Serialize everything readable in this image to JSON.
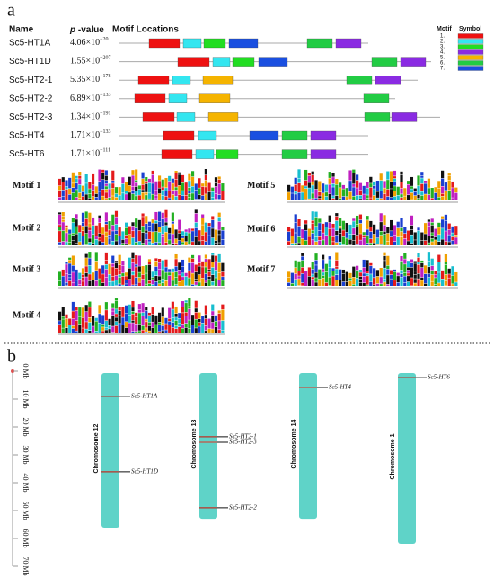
{
  "panel_a": {
    "label": "a",
    "headers": {
      "name": "Name",
      "p_italic": "p",
      "p_rest": " -value",
      "locations": "Motif Locations"
    },
    "legend": {
      "title_motif": "Motif",
      "title_symbol": "Symbol",
      "items": [
        {
          "label": "1.",
          "color": "#ee1111"
        },
        {
          "label": "2.",
          "color": "#33e6f0"
        },
        {
          "label": "3.",
          "color": "#22dd22"
        },
        {
          "label": "4.",
          "color": "#8a2be2"
        },
        {
          "label": "5.",
          "color": "#f5b400"
        },
        {
          "label": "6.",
          "color": "#22cc44"
        },
        {
          "label": "7.",
          "color": "#1a4fe0"
        }
      ]
    },
    "rows": [
      {
        "name": "Sc5-HT1A",
        "p_base": "4.06×10",
        "p_exp": "−20",
        "length": 277,
        "motifs": [
          [
            1,
            33,
            67
          ],
          [
            2,
            71,
            91
          ],
          [
            3,
            94,
            118
          ],
          [
            7,
            122,
            154
          ],
          [
            6,
            209,
            237
          ],
          [
            4,
            241,
            269
          ]
        ]
      },
      {
        "name": "Sc5-HT1D",
        "p_base": "1.55×10",
        "p_exp": "−207",
        "length": 347,
        "motifs": [
          [
            1,
            65,
            100
          ],
          [
            2,
            104,
            123
          ],
          [
            3,
            126,
            150
          ],
          [
            7,
            155,
            187
          ],
          [
            6,
            281,
            309
          ],
          [
            4,
            313,
            341
          ]
        ]
      },
      {
        "name": "Sc5-HT2-1",
        "p_base": "5.35×10",
        "p_exp": "−178",
        "length": 332,
        "motifs": [
          [
            1,
            21,
            55
          ],
          [
            2,
            59,
            79
          ],
          [
            5,
            93,
            126
          ],
          [
            6,
            253,
            281
          ],
          [
            4,
            285,
            313
          ]
        ]
      },
      {
        "name": "Sc5-HT2-2",
        "p_base": "6.89×10",
        "p_exp": "−133",
        "length": 307,
        "motifs": [
          [
            1,
            17,
            51
          ],
          [
            2,
            55,
            75
          ],
          [
            5,
            89,
            123
          ],
          [
            6,
            272,
            300
          ]
        ]
      },
      {
        "name": "Sc5-HT2-3",
        "p_base": "1.34×10",
        "p_exp": "−191",
        "length": 357,
        "motifs": [
          [
            1,
            26,
            61
          ],
          [
            2,
            64,
            84
          ],
          [
            5,
            99,
            132
          ],
          [
            6,
            273,
            301
          ],
          [
            4,
            303,
            331
          ]
        ]
      },
      {
        "name": "Sc5-HT4",
        "p_base": "1.71×10",
        "p_exp": "−133",
        "length": 277,
        "motifs": [
          [
            1,
            49,
            83
          ],
          [
            2,
            88,
            108
          ],
          [
            7,
            145,
            177
          ],
          [
            6,
            181,
            209
          ],
          [
            4,
            213,
            241
          ]
        ]
      },
      {
        "name": "Sc5-HT6",
        "p_base": "1.71×10",
        "p_exp": "−111",
        "length": 277,
        "motifs": [
          [
            1,
            47,
            81
          ],
          [
            2,
            85,
            105
          ],
          [
            3,
            108,
            132
          ],
          [
            6,
            181,
            209
          ],
          [
            4,
            213,
            241
          ]
        ]
      }
    ],
    "logos": [
      "Motif 1",
      "Motif 2",
      "Motif 3",
      "Motif 4",
      "Motif 5",
      "Motif 6",
      "Motif 7"
    ]
  },
  "panel_b": {
    "label": "b",
    "ylim": [
      0,
      70
    ],
    "ticks": [
      {
        "value": 0,
        "label": "0 Mb"
      },
      {
        "value": 10,
        "label": "10 Mb"
      },
      {
        "value": 20,
        "label": "20 Mb"
      },
      {
        "value": 30,
        "label": "30 Mb"
      },
      {
        "value": 40,
        "label": "40 Mb"
      },
      {
        "value": 50,
        "label": "50 Mb"
      },
      {
        "value": 60,
        "label": "60 Mb"
      },
      {
        "value": 70,
        "label": "70 Mb"
      }
    ],
    "chromosomes": [
      {
        "name": "Chromosome 12",
        "length": 55.5,
        "color": "#5fd3c8",
        "genes": [
          {
            "name": "Sc5-HT1A",
            "pos": 9.0
          },
          {
            "name": "Sc5-HT1D",
            "pos": 36.1
          }
        ]
      },
      {
        "name": "Chromosome 13",
        "length": 52.3,
        "color": "#5fd3c8",
        "genes": [
          {
            "name": "Sc5-HT2-1",
            "pos": 23.5
          },
          {
            "name": "Sc5-HT2-3",
            "pos": 25.5
          },
          {
            "name": "Sc5-HT2-2",
            "pos": 49.0
          }
        ]
      },
      {
        "name": "Chromosome 14",
        "length": 52.3,
        "color": "#5fd3c8",
        "genes": [
          {
            "name": "Sc5-HT4",
            "pos": 5.8
          }
        ]
      },
      {
        "name": "Chromosome 1",
        "length": 61.3,
        "color": "#5fd3c8",
        "genes": [
          {
            "name": "Sc5-HT6",
            "pos": 2.3
          }
        ]
      }
    ]
  }
}
